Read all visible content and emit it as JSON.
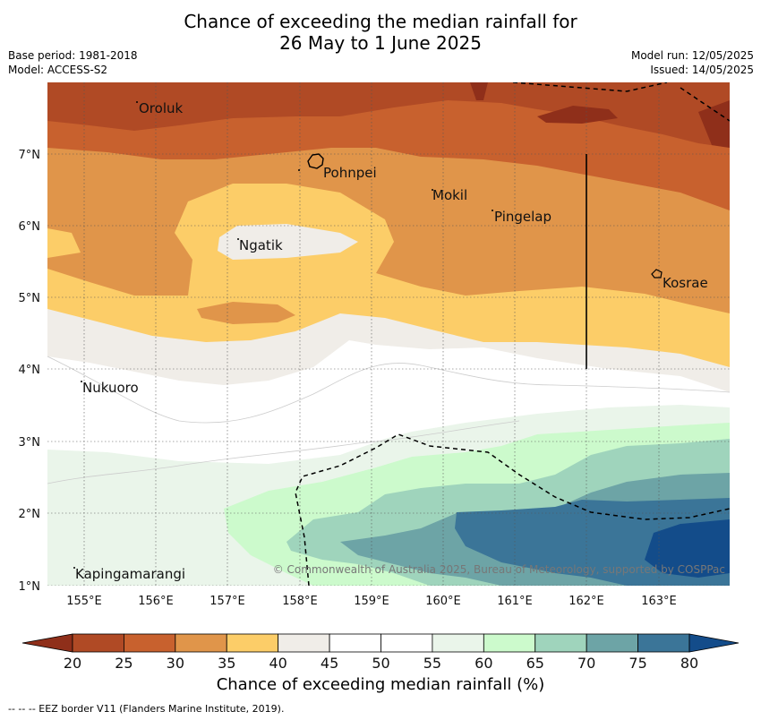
{
  "title": {
    "line1": "Chance of exceeding the median rainfall for",
    "line2": "26 May to 1 June 2025"
  },
  "meta": {
    "base_period": "Base period: 1981-2018",
    "model": "Model: ACCESS-S2",
    "model_run": "Model run: 12/05/2025",
    "issued": "Issued: 14/05/2025"
  },
  "axes": {
    "lon_labels": [
      "155°E",
      "156°E",
      "157°E",
      "158°E",
      "159°E",
      "160°E",
      "161°E",
      "162°E",
      "163°E"
    ],
    "lat_labels": [
      "7°N",
      "6°N",
      "5°N",
      "4°N",
      "3°N",
      "2°N",
      "1°N"
    ]
  },
  "places": {
    "oroluk": "Oroluk",
    "pohnpei": "Pohnpei",
    "mokil": "Mokil",
    "pingelap": "Pingelap",
    "ngatik": "Ngatik",
    "kosrae": "Kosrae",
    "nukuoro": "Nukuoro",
    "kapingamarangi": "Kapingamarangi"
  },
  "copyright": "© Commonwealth of Australia 2025, Bureau of Meteorology, supported by COSPPac",
  "colorbar": {
    "labels": [
      "20",
      "25",
      "30",
      "35",
      "40",
      "45",
      "50",
      "55",
      "60",
      "65",
      "70",
      "75",
      "80"
    ],
    "colors": [
      "#8f2f1a",
      "#b04a25",
      "#c8612e",
      "#e0954a",
      "#fccd68",
      "#f0ede8",
      "#ffffff",
      "#ffffff",
      "#eaf5ea",
      "#ccfacc",
      "#9fd4bc",
      "#6da4a6",
      "#3b7598",
      "#134c8a"
    ],
    "title": "Chance of exceeding median rainfall (%)"
  },
  "footer": "--  --  -- EEZ border V11 (Flanders Marine Institute, 2019)."
}
